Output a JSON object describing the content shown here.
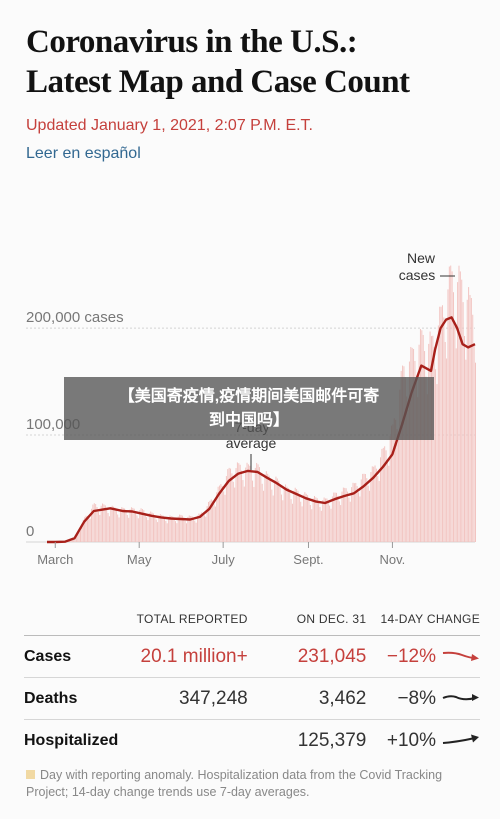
{
  "headline": {
    "line1": "Coronavirus in the U.S.:",
    "line2": "Latest Map and Case Count"
  },
  "updated": "Updated January 1, 2021, 2:07 P.M. E.T.",
  "spanish_link": "Leer en español",
  "overlay": {
    "line1": "【美国寄疫情,疫情期间美国邮件可寄",
    "line2": "到中国吗】"
  },
  "chart_data": {
    "type": "bar",
    "y_tick_labels": [
      "200,000 cases",
      "100,000",
      "0"
    ],
    "y_ticks": [
      200000,
      100000,
      0
    ],
    "x_tick_labels": [
      "March",
      "May",
      "July",
      "Sept.",
      "Nov."
    ],
    "x_ticks": [
      "2020-03-01",
      "2020-05-01",
      "2020-07-01",
      "2020-09-01",
      "2020-11-01"
    ],
    "ylim": [
      0,
      245000
    ],
    "xlim": [
      "2020-02-24",
      "2020-12-31"
    ],
    "grid": true,
    "annotations": {
      "new_cases": [
        "New",
        "cases"
      ],
      "average": [
        "7-day",
        "average"
      ]
    },
    "series": [
      {
        "name": "New cases",
        "dates": [
          "2020-02-24",
          "2020-03-08",
          "2020-03-15",
          "2020-03-22",
          "2020-03-29",
          "2020-04-05",
          "2020-04-12",
          "2020-04-19",
          "2020-04-26",
          "2020-05-03",
          "2020-05-10",
          "2020-05-17",
          "2020-05-24",
          "2020-05-31",
          "2020-06-07",
          "2020-06-14",
          "2020-06-21",
          "2020-06-28",
          "2020-07-05",
          "2020-07-12",
          "2020-07-19",
          "2020-07-26",
          "2020-08-02",
          "2020-08-09",
          "2020-08-16",
          "2020-08-23",
          "2020-08-30",
          "2020-09-06",
          "2020-09-13",
          "2020-09-20",
          "2020-09-27",
          "2020-10-04",
          "2020-10-11",
          "2020-10-18",
          "2020-10-25",
          "2020-11-01",
          "2020-11-08",
          "2020-11-15",
          "2020-11-22",
          "2020-11-29",
          "2020-12-06",
          "2020-12-13",
          "2020-12-20",
          "2020-12-27",
          "2020-12-31"
        ],
        "values": [
          0,
          400,
          4000,
          21000,
          33000,
          32000,
          30000,
          29000,
          29000,
          28000,
          25000,
          23000,
          22000,
          23000,
          22000,
          24000,
          35000,
          48000,
          63000,
          67000,
          66000,
          66000,
          58000,
          54000,
          47000,
          45000,
          41000,
          38000,
          37000,
          42000,
          46000,
          50000,
          58000,
          64000,
          80000,
          100000,
          150000,
          165000,
          180000,
          175000,
          200000,
          235000,
          230000,
          210000,
          215000
        ]
      },
      {
        "name": "7-day average",
        "dates": [
          "2020-02-24",
          "2020-03-01",
          "2020-03-08",
          "2020-03-15",
          "2020-03-22",
          "2020-03-29",
          "2020-04-05",
          "2020-04-10",
          "2020-04-19",
          "2020-04-26",
          "2020-05-03",
          "2020-05-10",
          "2020-05-17",
          "2020-05-24",
          "2020-05-31",
          "2020-06-07",
          "2020-06-14",
          "2020-06-21",
          "2020-06-28",
          "2020-07-05",
          "2020-07-12",
          "2020-07-19",
          "2020-07-26",
          "2020-08-02",
          "2020-08-09",
          "2020-08-16",
          "2020-08-23",
          "2020-08-30",
          "2020-09-06",
          "2020-09-13",
          "2020-09-20",
          "2020-09-27",
          "2020-10-04",
          "2020-10-11",
          "2020-10-18",
          "2020-10-25",
          "2020-11-01",
          "2020-11-08",
          "2020-11-15",
          "2020-11-22",
          "2020-11-29",
          "2020-12-02",
          "2020-12-06",
          "2020-12-10",
          "2020-12-14",
          "2020-12-18",
          "2020-12-22",
          "2020-12-26",
          "2020-12-31"
        ],
        "values": [
          0,
          0,
          300,
          3500,
          19000,
          29000,
          30500,
          31500,
          29000,
          28500,
          26500,
          24500,
          23000,
          22000,
          21500,
          21000,
          23500,
          31000,
          45000,
          57000,
          64000,
          66500,
          65500,
          60000,
          55000,
          49000,
          45000,
          41000,
          38000,
          36500,
          40000,
          43000,
          45500,
          52000,
          60000,
          70000,
          82000,
          110000,
          140000,
          165000,
          160000,
          180000,
          200000,
          208000,
          210000,
          200000,
          185000,
          182000,
          185000
        ]
      }
    ]
  },
  "stats": {
    "headers": [
      "",
      "TOTAL REPORTED",
      "ON DEC. 31",
      "14-DAY CHANGE"
    ],
    "rows": [
      {
        "label": "Cases",
        "total": "20.1 million+",
        "day": "231,045",
        "change": "−12%",
        "trend": "down",
        "highlight": true
      },
      {
        "label": "Deaths",
        "total": "347,248",
        "day": "3,462",
        "change": "−8%",
        "trend": "flat",
        "highlight": false
      },
      {
        "label": "Hospitalized",
        "total": "",
        "day": "125,379",
        "change": "+10%",
        "trend": "up",
        "highlight": false
      }
    ]
  },
  "footnote": "Day with reporting anomaly. Hospitalization data from the Covid Tracking Project; 14-day change trends use 7-day averages.",
  "colors": {
    "accent_red": "#c5403c",
    "bar_pink": "#f2c4c1",
    "line_red": "#a8201a",
    "link_blue": "#326891",
    "anomaly_yellow": "#f1d9a3"
  }
}
